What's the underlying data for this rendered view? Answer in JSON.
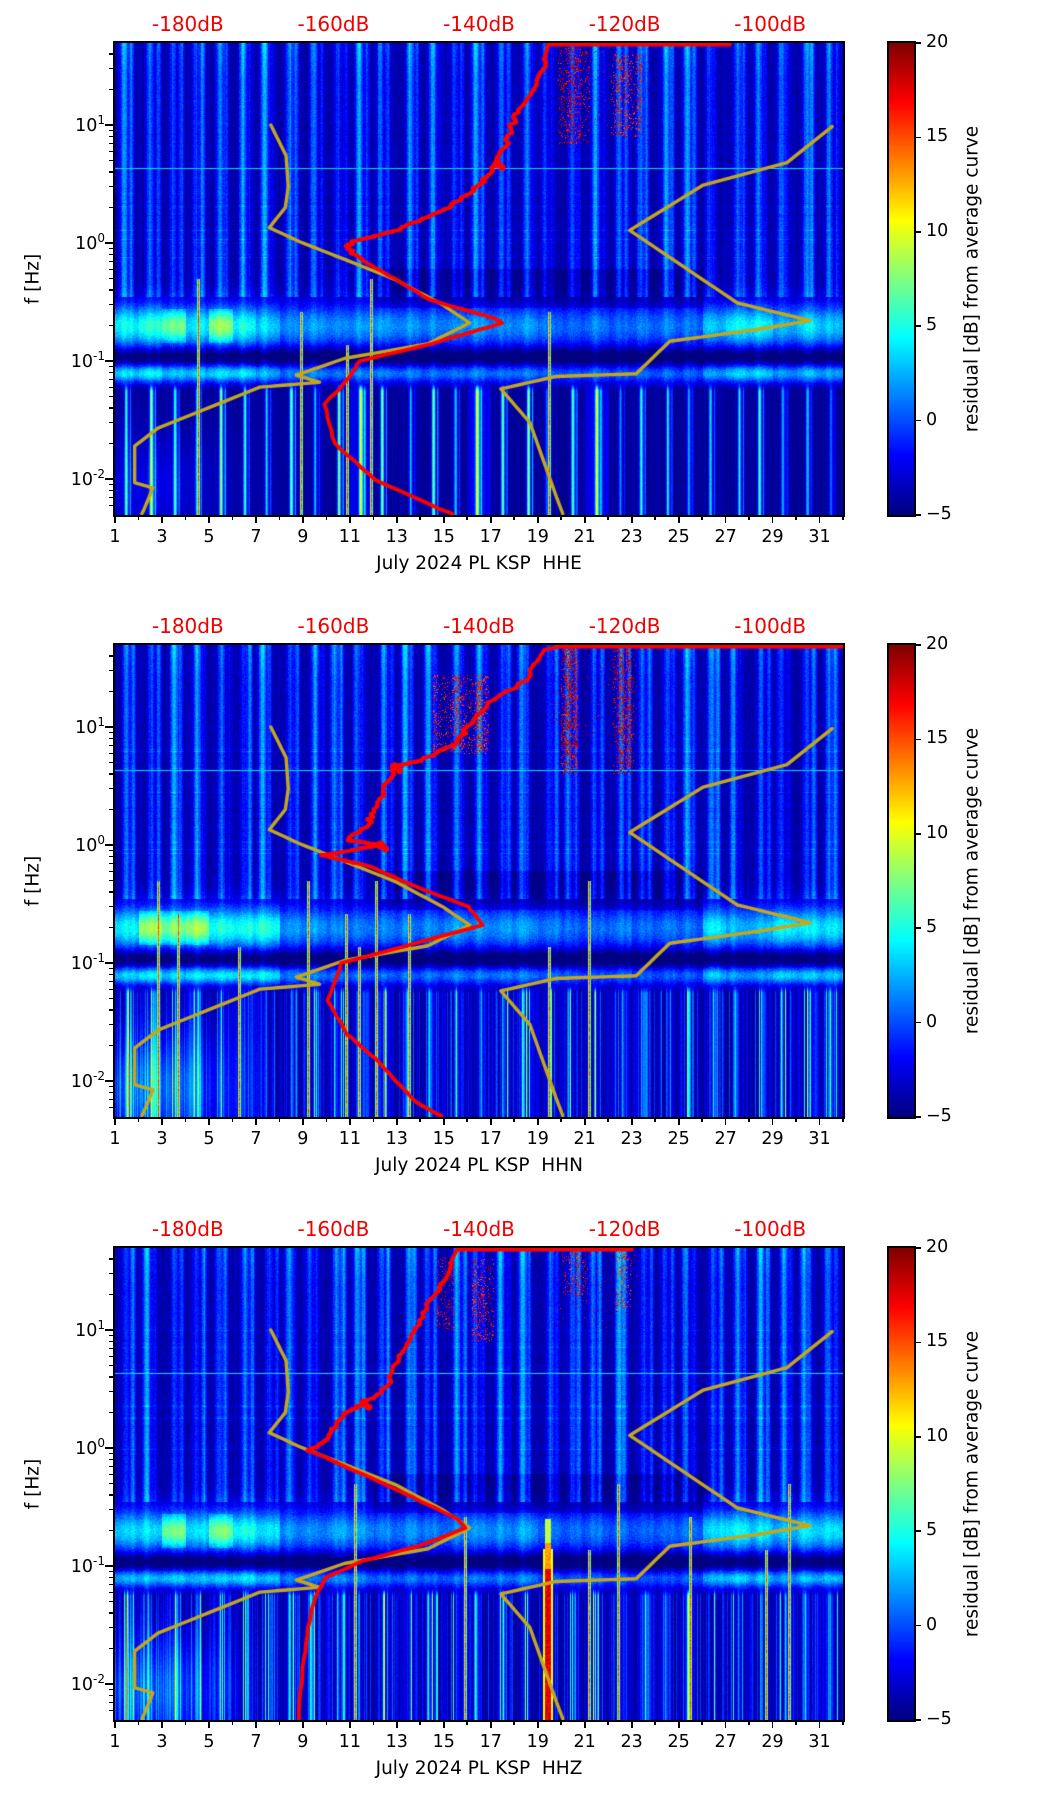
{
  "figure": {
    "background": "#ffffff",
    "kind": "seismic probabilistic spectrogram residuals, 3 channels"
  },
  "chart_data": {
    "type": "heatmap",
    "description": "Daily-striped residual power spectrograms for July 2024, station PL KSP, channels HHE/HHN/HHZ. Heatmap shows residual [dB] from average curve vs day (bottom axis) and frequency (log y-axis). Red curve = station average PSD plotted against top red dB axis; yellow curves = low/high noise model reference curves on same dB axis.",
    "x_axis": {
      "tick_days": [
        1,
        3,
        5,
        7,
        9,
        11,
        13,
        15,
        17,
        19,
        21,
        23,
        25,
        27,
        29,
        31
      ],
      "minor_days": [
        2,
        4,
        6,
        8,
        10,
        12,
        14,
        16,
        18,
        20,
        22,
        24,
        26,
        28,
        30,
        32
      ],
      "day_range": [
        1,
        32
      ]
    },
    "y_axis": {
      "label": "f [Hz]",
      "scale": "log",
      "range_hz": [
        0.005,
        49.5
      ],
      "major_ticks": [
        {
          "exp": "1"
        },
        {
          "exp": "0"
        },
        {
          "exp": "-1"
        },
        {
          "exp": "-2"
        }
      ]
    },
    "top_axis": {
      "color": "#f10000",
      "range_db": [
        -190,
        -90
      ],
      "ticks": [
        {
          "db": -180,
          "label": "-180dB"
        },
        {
          "db": -160,
          "label": "-160dB"
        },
        {
          "db": -140,
          "label": "-140dB"
        },
        {
          "db": -120,
          "label": "-120dB"
        },
        {
          "db": -100,
          "label": "-100dB"
        }
      ]
    },
    "colorbar": {
      "label": "residual [dB] from average curve",
      "min": -5,
      "max": 20,
      "ticks": [
        20,
        15,
        10,
        5,
        0,
        -5
      ],
      "colormap": "jet"
    },
    "models": {
      "color": "#c3a81e",
      "nlnm_db_hz": [
        [
          -168.6,
          10
        ],
        [
          -166.5,
          5.5
        ],
        [
          -166.2,
          3.0
        ],
        [
          -166.6,
          2.0
        ],
        [
          -168.8,
          1.35
        ],
        [
          -164.7,
          1.03
        ],
        [
          -158.8,
          0.74
        ],
        [
          -151.5,
          0.49
        ],
        [
          -145.0,
          0.3
        ],
        [
          -141.3,
          0.21
        ],
        [
          -147.0,
          0.14
        ],
        [
          -158.5,
          0.105
        ],
        [
          -165.1,
          0.076
        ],
        [
          -161.9,
          0.066
        ],
        [
          -170.1,
          0.06
        ],
        [
          -184.1,
          0.027
        ],
        [
          -187.3,
          0.019
        ],
        [
          -187.3,
          0.0093
        ],
        [
          -184.8,
          0.0084
        ],
        [
          -186.3,
          0.005
        ]
      ],
      "nhnm_db_hz": [
        [
          -91.5,
          9.7
        ],
        [
          -97.7,
          4.8
        ],
        [
          -109.2,
          3.1
        ],
        [
          -119.3,
          1.28
        ],
        [
          -104.5,
          0.31
        ],
        [
          -94.5,
          0.22
        ],
        [
          -101.8,
          0.185
        ],
        [
          -113.8,
          0.147
        ],
        [
          -118.4,
          0.078
        ],
        [
          -129.4,
          0.074
        ],
        [
          -137.0,
          0.058
        ],
        [
          -133.0,
          0.03
        ],
        [
          -128.5,
          0.005
        ]
      ]
    },
    "red_color": "#ff0000",
    "panels": [
      {
        "id": "HHE",
        "x_label": "July 2024 PL KSP  HHE",
        "red_curve_db_hz": [
          [
            -105.5,
            49.5
          ],
          [
            -130.5,
            48.5
          ],
          [
            -131,
            36
          ],
          [
            -131.8,
            24
          ],
          [
            -134.5,
            13.5
          ],
          [
            -135.5,
            10
          ],
          [
            -136.5,
            6.5
          ],
          [
            -137.5,
            4.7
          ],
          [
            -139,
            3.6
          ],
          [
            -140.7,
            2.8
          ],
          [
            -143.6,
            2.1
          ],
          [
            -147.5,
            1.6
          ],
          [
            -152,
            1.25
          ],
          [
            -157.5,
            1.03
          ],
          [
            -158.2,
            0.9
          ],
          [
            -155.5,
            0.68
          ],
          [
            -151.6,
            0.5
          ],
          [
            -146.8,
            0.33
          ],
          [
            -137.9,
            0.23
          ],
          [
            -136.8,
            0.21
          ],
          [
            -146.5,
            0.14
          ],
          [
            -156.4,
            0.1
          ],
          [
            -158.2,
            0.068
          ],
          [
            -161.2,
            0.043
          ],
          [
            -159.8,
            0.02
          ],
          [
            -154.2,
            0.0098
          ],
          [
            -143.7,
            0.005
          ]
        ],
        "texture": {
          "seed": 11,
          "low_style": "yellow",
          "low_amp": 11,
          "comb_amp": 1.5,
          "wash_amp": 1.8,
          "wash_day": 2.4,
          "core_threshold": 0.45,
          "jitter": 3.0,
          "blob_f": [
            4.7
          ],
          "red_lines": [
            4.55,
            8.9,
            10.9,
            11.9,
            19.5
          ],
          "patches": [
            {
              "d0": 19.85,
              "d1": 21.2,
              "f0": 7,
              "f1": 45,
              "density": 0.45,
              "v": 15
            },
            {
              "d0": 22.1,
              "d1": 23.4,
              "f0": 8,
              "f1": 40,
              "density": 0.3,
              "v": 14
            },
            {
              "d0": 19.8,
              "d1": 23.2,
              "f0": 10,
              "f1": 49,
              "density": 0.035,
              "v": 16
            }
          ]
        }
      },
      {
        "id": "HHN",
        "x_label": "July 2024 PL KSP  HHN",
        "red_curve_db_hz": [
          [
            -90,
            49.5
          ],
          [
            -128,
            49.5
          ],
          [
            -131,
            45
          ],
          [
            -133.6,
            25
          ],
          [
            -138.4,
            16
          ],
          [
            -141.4,
            10
          ],
          [
            -143.8,
            7
          ],
          [
            -148,
            5.2
          ],
          [
            -151.6,
            4.6
          ],
          [
            -153,
            3
          ],
          [
            -154.4,
            2
          ],
          [
            -155.3,
            1.5
          ],
          [
            -158.1,
            1.1
          ],
          [
            -153.5,
            1.0
          ],
          [
            -161.6,
            0.82
          ],
          [
            -155,
            0.66
          ],
          [
            -148.9,
            0.45
          ],
          [
            -141.5,
            0.3
          ],
          [
            -139.5,
            0.21
          ],
          [
            -150,
            0.14
          ],
          [
            -158.9,
            0.1
          ],
          [
            -160.8,
            0.048
          ],
          [
            -158.1,
            0.025
          ],
          [
            -154,
            0.015
          ],
          [
            -148.9,
            0.0068
          ],
          [
            -145.1,
            0.005
          ]
        ],
        "texture": {
          "seed": 23,
          "low_style": "blue",
          "low_amp": 5.5,
          "comb_amp": 7.0,
          "wash_amp": 4.3,
          "wash_day": 2.6,
          "core_threshold": 0.35,
          "jitter": 3.0,
          "blob_f": [
            4.6,
            1.0
          ],
          "red_lines": [
            2.85,
            3.7,
            6.3,
            9.2,
            10.85,
            11.4,
            12.1,
            13.5,
            19.5,
            21.2
          ],
          "patches": [
            {
              "d0": 14.5,
              "d1": 16.9,
              "f0": 6,
              "f1": 28,
              "density": 0.35,
              "v": 14
            },
            {
              "d0": 19.95,
              "d1": 20.7,
              "f0": 4,
              "f1": 47,
              "density": 0.5,
              "v": 15
            },
            {
              "d0": 22.2,
              "d1": 23.1,
              "f0": 4,
              "f1": 45,
              "density": 0.45,
              "v": 15
            },
            {
              "d0": 19.5,
              "d1": 23.2,
              "f0": 8,
              "f1": 49,
              "density": 0.04,
              "v": 16
            }
          ]
        }
      },
      {
        "id": "HHZ",
        "x_label": "July 2024 PL KSP  HHZ",
        "red_curve_db_hz": [
          [
            -119,
            49.5
          ],
          [
            -143,
            49.5
          ],
          [
            -144.8,
            27
          ],
          [
            -147.5,
            15
          ],
          [
            -148.9,
            9.6
          ],
          [
            -151,
            6
          ],
          [
            -152.6,
            3.3
          ],
          [
            -155.8,
            2.4
          ],
          [
            -158.1,
            2.0
          ],
          [
            -159.9,
            1.5
          ],
          [
            -160.8,
            1.2
          ],
          [
            -163.3,
            0.95
          ],
          [
            -156,
            0.6
          ],
          [
            -149,
            0.38
          ],
          [
            -143,
            0.25
          ],
          [
            -141.8,
            0.21
          ],
          [
            -148,
            0.15
          ],
          [
            -156,
            0.11
          ],
          [
            -161,
            0.08
          ],
          [
            -162.5,
            0.055
          ],
          [
            -163.5,
            0.03
          ],
          [
            -164.3,
            0.012
          ],
          [
            -164.8,
            0.005
          ]
        ],
        "texture": {
          "seed": 37,
          "low_style": "blue",
          "low_amp": 5.0,
          "comb_amp": 7.0,
          "wash_amp": 3.8,
          "wash_day": 2.6,
          "core_threshold": 0.6,
          "jitter": 2.4,
          "blob_f": [
            2.4
          ],
          "red_band": {
            "day": 19.42,
            "halfwidth": 0.13
          },
          "red_lines": [
            11.2,
            15.9,
            21.2,
            22.4,
            25.5,
            28.7,
            29.7
          ],
          "patches": [
            {
              "d0": 14.7,
              "d1": 15.4,
              "f0": 10,
              "f1": 42,
              "density": 0.4,
              "v": 15
            },
            {
              "d0": 16.2,
              "d1": 17.1,
              "f0": 8,
              "f1": 40,
              "density": 0.35,
              "v": 14
            },
            {
              "d0": 20.0,
              "d1": 21.1,
              "f0": 20,
              "f1": 49,
              "density": 0.25,
              "v": 14
            },
            {
              "d0": 22.3,
              "d1": 23.0,
              "f0": 15,
              "f1": 45,
              "density": 0.2,
              "v": 13
            },
            {
              "d0": 19.8,
              "d1": 23.2,
              "f0": 10,
              "f1": 49,
              "density": 0.025,
              "v": 16
            }
          ]
        }
      }
    ]
  }
}
